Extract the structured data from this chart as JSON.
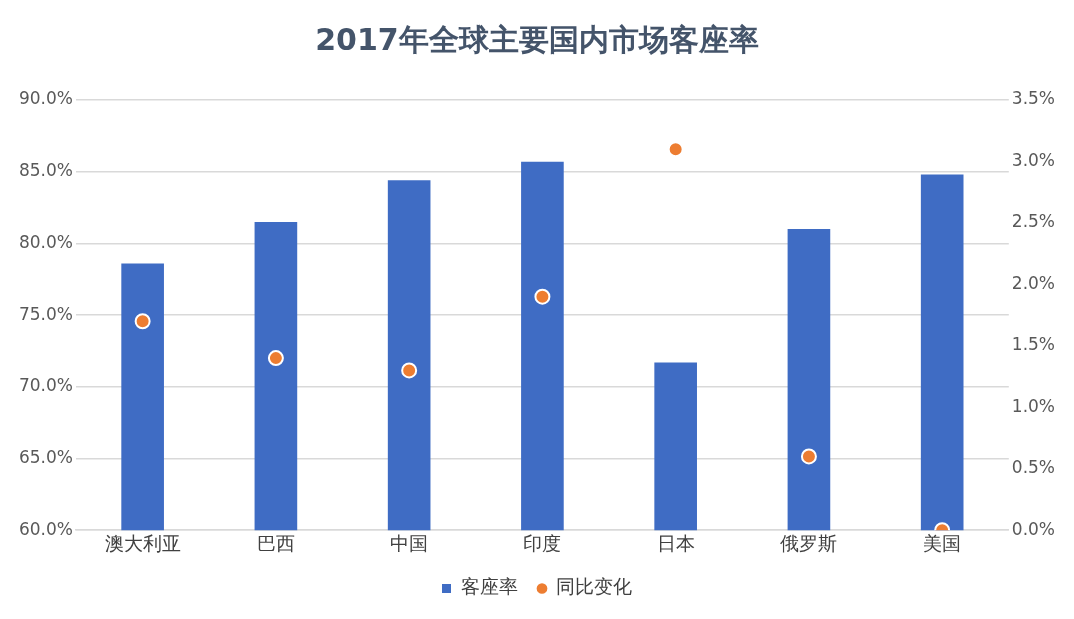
{
  "chart_data": {
    "type": "bar",
    "title": "2017年全球主要国内市场客座率",
    "categories": [
      "澳大利亚",
      "巴西",
      "中国",
      "印度",
      "日本",
      "俄罗斯",
      "美国"
    ],
    "series": [
      {
        "name": "客座率",
        "color": "#3f6cc4",
        "values": [
          78.6,
          81.5,
          84.4,
          85.7,
          71.7,
          81.0,
          84.8
        ]
      },
      {
        "name": "同比变化",
        "type": "scatter",
        "axis": "y2",
        "color": "#ed7d31",
        "values": [
          1.7,
          1.4,
          1.3,
          1.9,
          3.1,
          0.6,
          0.0
        ]
      }
    ],
    "ylim": [
      60,
      90
    ],
    "yticks": [
      {
        "value": 60,
        "label": "60.0%"
      },
      {
        "value": 65,
        "label": "65.0%"
      },
      {
        "value": 70,
        "label": "70.0%"
      },
      {
        "value": 75,
        "label": "75.0%"
      },
      {
        "value": 80,
        "label": "80.0%"
      },
      {
        "value": 85,
        "label": "85.0%"
      },
      {
        "value": 90,
        "label": "90.0%"
      }
    ],
    "y2lim": [
      0,
      3.5
    ],
    "y2ticks": [
      {
        "value": 0,
        "label": "0.0%"
      },
      {
        "value": 0.5,
        "label": "0.5%"
      },
      {
        "value": 1,
        "label": "1.0%"
      },
      {
        "value": 1.5,
        "label": "1.5%"
      },
      {
        "value": 2,
        "label": "2.0%"
      },
      {
        "value": 2.5,
        "label": "2.5%"
      },
      {
        "value": 3,
        "label": "3.0%"
      },
      {
        "value": 3.5,
        "label": "3.5%"
      }
    ],
    "grid": "y",
    "legend": "bottom",
    "marker": "circle"
  }
}
